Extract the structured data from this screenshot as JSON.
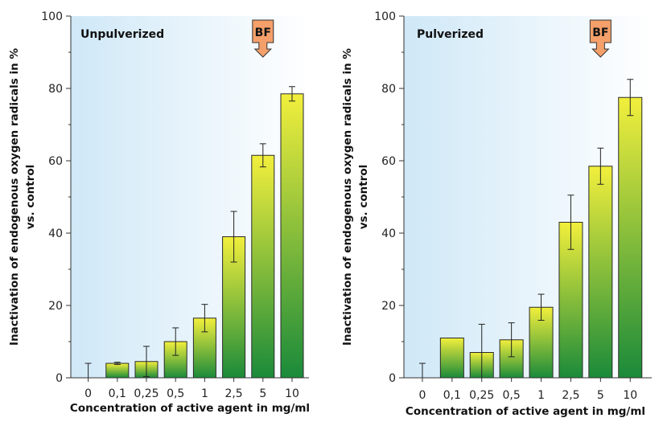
{
  "chart_data": [
    {
      "type": "bar",
      "title": "Unpulverized",
      "categories": [
        "0",
        "0,1",
        "0,25",
        "0,5",
        "1",
        "2,5",
        "5",
        "10"
      ],
      "values": [
        0,
        4,
        4.5,
        10,
        16.5,
        39,
        61.5,
        78.5
      ],
      "error": [
        4,
        0.3,
        4.2,
        3.8,
        3.8,
        7,
        3.2,
        2
      ],
      "ylim": [
        0,
        100
      ],
      "yticks": [
        0,
        20,
        40,
        60,
        80,
        100
      ],
      "ylabel_line1": "Inactivation of endogenous oxygen radicals in %",
      "ylabel_line2": "vs. control",
      "xlabel": "Concentration of active agent in mg/ml",
      "marker": {
        "text": "BF",
        "category": "5"
      }
    },
    {
      "type": "bar",
      "title": "Pulverized",
      "categories": [
        "0",
        "0,1",
        "0,25",
        "0,5",
        "1",
        "2,5",
        "5",
        "10"
      ],
      "values": [
        0,
        11,
        7,
        10.5,
        19.5,
        43,
        58.5,
        77.5
      ],
      "error": [
        4,
        0,
        7.8,
        4.7,
        3.6,
        7.5,
        5,
        5
      ],
      "ylim": [
        0,
        100
      ],
      "yticks": [
        0,
        20,
        40,
        60,
        80,
        100
      ],
      "ylabel_line1": "Inactivation of endogenous oxygen radicals in %",
      "ylabel_line2": "vs. control",
      "xlabel": "Concentration of active agent in mg/ml",
      "marker": {
        "text": "BF",
        "category": "5"
      }
    }
  ],
  "colors": {
    "bar_top": "#f2ef3c",
    "bar_bottom": "#1a8a3a",
    "bar_stroke": "#2a2a2a",
    "plot_bg_left": "#cfe8f7",
    "plot_bg_right": "#ffffff",
    "marker_fill": "#f5a06a"
  }
}
